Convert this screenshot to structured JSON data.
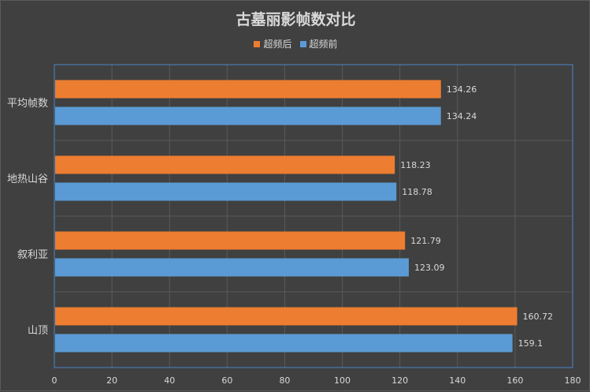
{
  "chart_data": {
    "type": "bar",
    "orientation": "horizontal",
    "title": "古墓丽影帧数对比",
    "categories": [
      "平均帧数",
      "地热山谷",
      "叙利亚",
      "山顶"
    ],
    "series": [
      {
        "name": "超频后",
        "color": "#ed7d31",
        "values": [
          134.26,
          118.23,
          121.79,
          160.72
        ]
      },
      {
        "name": "超频前",
        "color": "#5b9bd5",
        "values": [
          134.24,
          118.78,
          123.09,
          159.1
        ]
      }
    ],
    "data_labels": [
      [
        "134.26",
        "118.23",
        "121.79",
        "160.72"
      ],
      [
        "134.24",
        "118.78",
        "123.09",
        "159.1"
      ]
    ],
    "xlim": [
      0,
      180
    ],
    "x_ticks": [
      "0",
      "20",
      "40",
      "60",
      "80",
      "100",
      "120",
      "140",
      "160",
      "180"
    ],
    "grid": true,
    "legend_position": "top"
  },
  "colors": {
    "background": "#404040",
    "text": "#d9d9d9",
    "gridline": "#5a5a5a",
    "plot_border": "#4a86c8"
  }
}
